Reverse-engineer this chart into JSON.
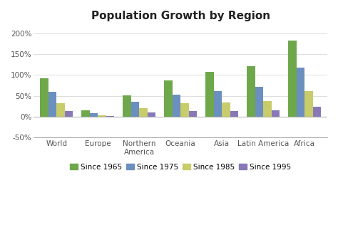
{
  "title": "Population Growth by Region",
  "categories": [
    "World",
    "Europe",
    "Northern\nAmerica",
    "Oceania",
    "Asia",
    "Latin America",
    "Africa"
  ],
  "series": {
    "Since 1965": [
      93,
      15,
      51,
      87,
      107,
      122,
      183
    ],
    "Since 1975": [
      59,
      8,
      35,
      53,
      62,
      72,
      117
    ],
    "Since 1985": [
      33,
      3,
      21,
      32,
      34,
      38,
      62
    ],
    "Since 1995": [
      13,
      1,
      11,
      13,
      13,
      15,
      24
    ]
  },
  "colors": {
    "Since 1965": "#6fa84a",
    "Since 1975": "#6b8fbe",
    "Since 1985": "#c8cc6a",
    "Since 1995": "#8878b8"
  },
  "ylim": [
    -50,
    215
  ],
  "yticks": [
    -50,
    0,
    50,
    100,
    150,
    200
  ],
  "ytick_labels": [
    "-50%",
    "0%",
    "50%",
    "100%",
    "150%",
    "200%"
  ],
  "background_color": "#ffffff",
  "plot_bg_color": "#ffffff",
  "grid_color": "#d8d8d8",
  "title_fontsize": 11,
  "legend_fontsize": 7.5,
  "tick_fontsize": 7.5,
  "bar_width": 0.2
}
